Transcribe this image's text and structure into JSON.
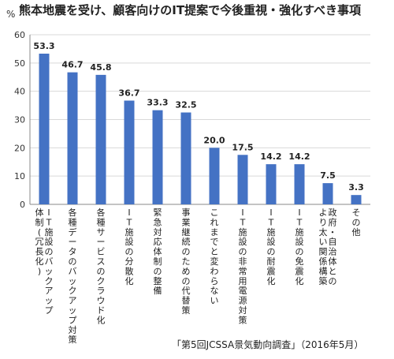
{
  "chart_data": {
    "type": "bar",
    "title": "熊本地震を受け、顧客向けのIT提案で今後重視・強化すべき事項",
    "ylabel": "%",
    "xlabel": "",
    "ylim": [
      0,
      60
    ],
    "yticks": [
      0,
      10,
      20,
      30,
      40,
      50,
      60
    ],
    "grid": true,
    "color": "#4472C4",
    "categories": [
      "IT施設のバックアップ体制(冗長化)",
      "各種データのバックアップ対策",
      "各種サービスのクラウド化",
      "IT施設の分散化",
      "緊急対応体制の整備",
      "事業継続のための代替策",
      "これまでと変わらない",
      "IT施設の非常用電源対策",
      "IT施設の耐震化",
      "IT施設の免震化",
      "政府・自治体とのより太い関係構築",
      "その他"
    ],
    "category_lines": [
      [
        "IT施設のバックアップ",
        "体制(冗長化)"
      ],
      [
        "各種データのバックアップ対策"
      ],
      [
        "各種サービスのクラウド化"
      ],
      [
        "IT施設の分散化"
      ],
      [
        "緊急対応体制の整備"
      ],
      [
        "事業継続のための代替策"
      ],
      [
        "これまでと変わらない"
      ],
      [
        "IT施設の非常用電源対策"
      ],
      [
        "IT施設の耐震化"
      ],
      [
        "IT施設の免震化"
      ],
      [
        "政府・自治体との",
        "より太い関係構築"
      ],
      [
        "その他"
      ]
    ],
    "values": [
      53.3,
      46.7,
      45.8,
      36.7,
      33.3,
      32.5,
      20.0,
      17.5,
      14.2,
      14.2,
      7.5,
      3.3
    ],
    "value_labels": [
      "53.3",
      "46.7",
      "45.8",
      "36.7",
      "33.3",
      "32.5",
      "20.0",
      "17.5",
      "14.2",
      "14.2",
      "7.5",
      "3.3"
    ]
  },
  "source": "「第5回JCSSA景気動向調査」（2016年5月）"
}
